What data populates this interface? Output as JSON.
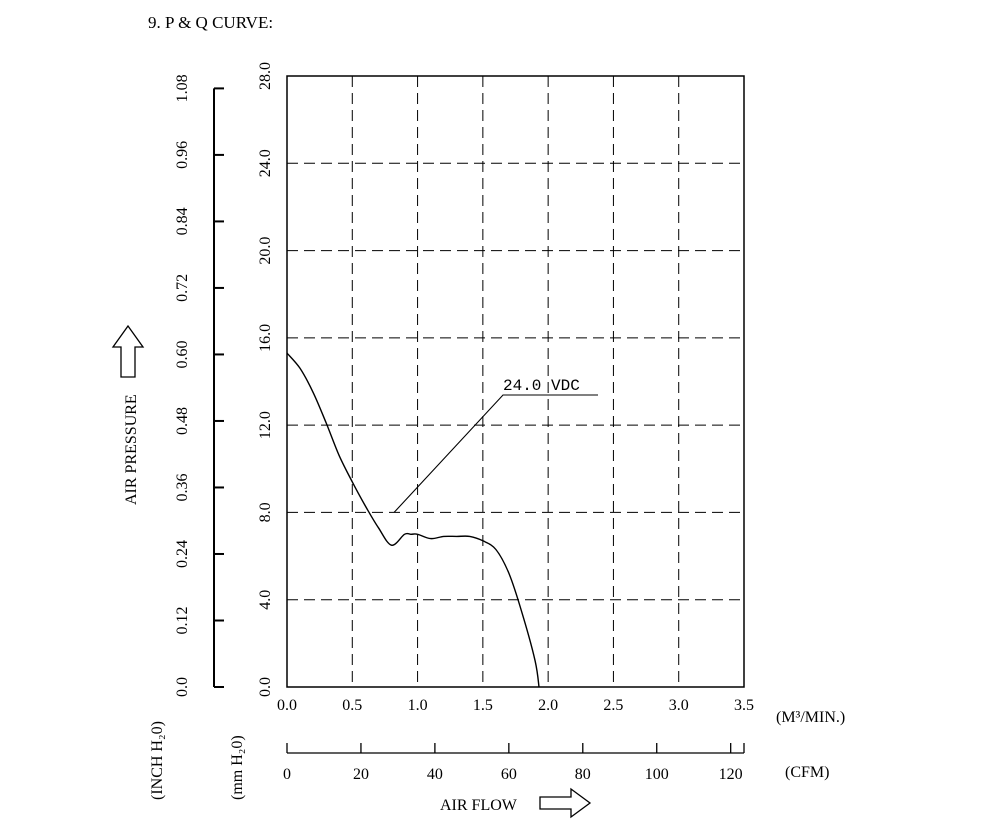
{
  "heading": "9. P & Q CURVE:",
  "chart_data": {
    "type": "line",
    "x_axis": {
      "label": "AIR FLOW",
      "primary_unit": "(M³/MIN.)",
      "primary_ticks": [
        "0.0",
        "0.5",
        "1.0",
        "1.5",
        "2.0",
        "2.5",
        "3.0",
        "3.5"
      ],
      "range": [
        0,
        3.5
      ],
      "secondary_unit": "(CFM)",
      "secondary_ticks": [
        "0",
        "20",
        "40",
        "60",
        "80",
        "100",
        "120"
      ]
    },
    "y_axis": {
      "label": "AIR PRESSURE",
      "primary_unit": "(mm H₂0)",
      "primary_ticks": [
        "0.0",
        "4.0",
        "8.0",
        "12.0",
        "16.0",
        "20.0",
        "24.0",
        "28.0"
      ],
      "range": [
        0,
        28
      ],
      "secondary_unit": "(INCH H₂0)",
      "secondary_ticks": [
        "0.0",
        "0.12",
        "0.24",
        "0.36",
        "0.48",
        "0.60",
        "0.72",
        "0.84",
        "0.96",
        "1.08"
      ]
    },
    "grid": true,
    "series": [
      {
        "name": "24.0 VDC",
        "x": [
          0.0,
          0.1,
          0.2,
          0.3,
          0.4,
          0.5,
          0.6,
          0.7,
          0.8,
          0.9,
          0.95,
          1.0,
          1.1,
          1.2,
          1.3,
          1.4,
          1.5,
          1.6,
          1.7,
          1.8,
          1.9,
          1.93
        ],
        "y": [
          15.3,
          14.6,
          13.5,
          12.1,
          10.6,
          9.4,
          8.3,
          7.3,
          6.5,
          7.0,
          7.0,
          7.0,
          6.8,
          6.9,
          6.9,
          6.9,
          6.7,
          6.3,
          5.2,
          3.4,
          1.2,
          0.0
        ]
      }
    ],
    "annotations": [
      {
        "text": "24.0 VDC",
        "points_to": {
          "x": 0.82,
          "y": 8.0
        }
      }
    ]
  }
}
